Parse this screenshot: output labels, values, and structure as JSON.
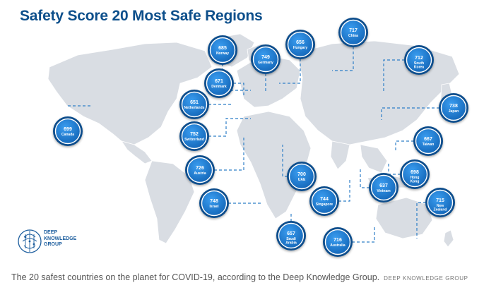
{
  "title": "Safety Score 20 Most Safe Regions",
  "logo": {
    "line1": "DEEP",
    "line2": "KNOWLEDGE",
    "line3": "GROUP",
    "icon": "brain-circuit-icon"
  },
  "caption": {
    "text": "The 20 safest countries on the planet for COVID-19, according to the Deep Knowledge Group.",
    "credit": "DEEP KNOWLEDGE GROUP"
  },
  "colors": {
    "title": "#0d4f8b",
    "badge_fill": "#1a7fd4",
    "badge_ring": "#0b4d8c",
    "connector": "#2f7fc7",
    "land": "#d9dde3",
    "ocean": "#ffffff"
  },
  "regions": [
    {
      "name": "Canada",
      "score": "699"
    },
    {
      "name": "Norway",
      "score": "685"
    },
    {
      "name": "Germany",
      "score": "749"
    },
    {
      "name": "Hungary",
      "score": "656"
    },
    {
      "name": "China",
      "score": "717"
    },
    {
      "name": "South Korea",
      "score": "712"
    },
    {
      "name": "Denmark",
      "score": "671"
    },
    {
      "name": "Netherlands",
      "score": "651"
    },
    {
      "name": "Japan",
      "score": "738"
    },
    {
      "name": "Switzerland",
      "score": "752"
    },
    {
      "name": "Taiwan",
      "score": "667"
    },
    {
      "name": "Austria",
      "score": "726"
    },
    {
      "name": "UAE",
      "score": "700"
    },
    {
      "name": "Hong Kong",
      "score": "698"
    },
    {
      "name": "Israel",
      "score": "748"
    },
    {
      "name": "Singapore",
      "score": "744"
    },
    {
      "name": "Vietnam",
      "score": "637"
    },
    {
      "name": "New Zealand",
      "score": "715"
    },
    {
      "name": "Saudi Arabia",
      "score": "657"
    },
    {
      "name": "Australia",
      "score": "716"
    }
  ]
}
